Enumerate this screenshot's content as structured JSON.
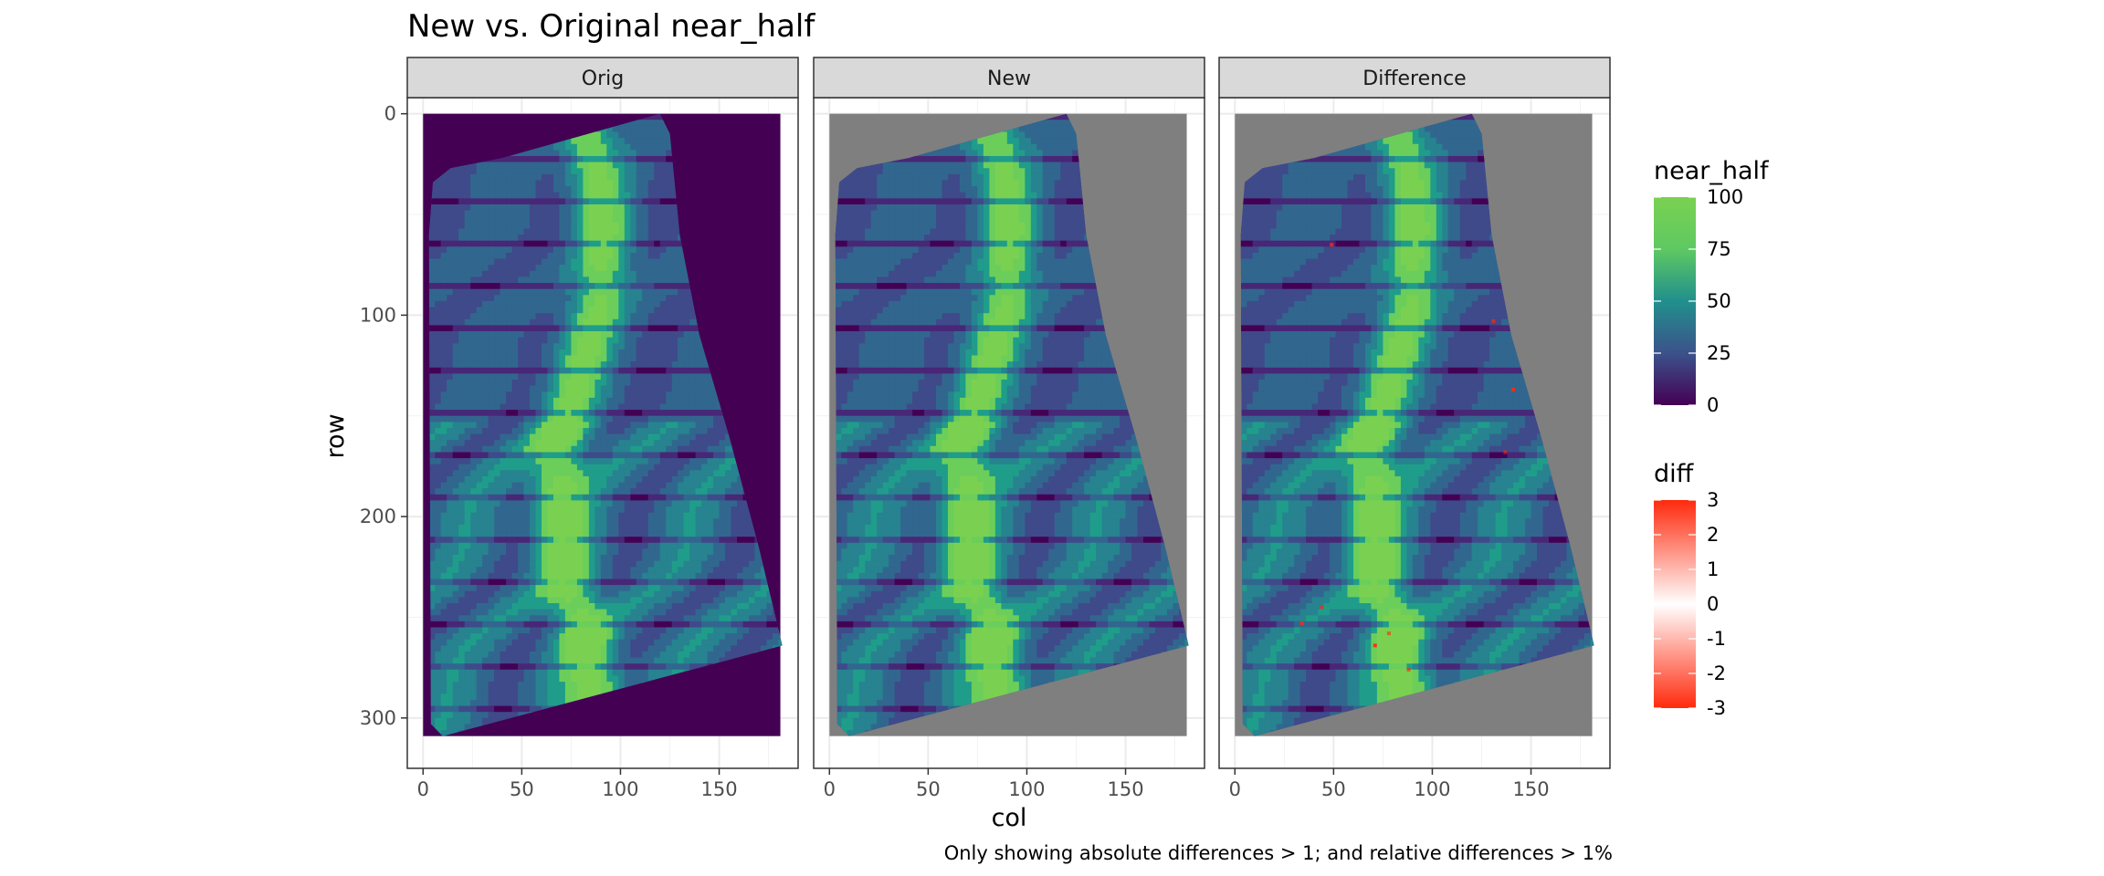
{
  "chart_data": {
    "type": "heatmap",
    "title": "New vs. Original near_half",
    "xlabel": "col",
    "ylabel": "row",
    "caption": "Only showing absolute differences > 1; and relative differences > 1%",
    "xlim": [
      -8,
      190
    ],
    "ylim": [
      325,
      -8
    ],
    "x_ticks": [
      0,
      50,
      100,
      150
    ],
    "y_ticks": [
      0,
      100,
      200,
      300
    ],
    "grid": true,
    "legend_placement": "right",
    "raster_extent": {
      "x": [
        0,
        181
      ],
      "y": [
        0,
        309
      ]
    },
    "domain_polygon": [
      [
        5,
        34
      ],
      [
        14,
        27
      ],
      [
        40,
        22
      ],
      [
        120,
        0
      ],
      [
        125,
        10
      ],
      [
        130,
        60
      ],
      [
        140,
        110
      ],
      [
        155,
        160
      ],
      [
        170,
        215
      ],
      [
        182,
        264
      ],
      [
        10,
        309
      ],
      [
        4,
        303
      ],
      [
        3,
        60
      ]
    ],
    "panels": [
      {
        "label": "Orig",
        "background": "#440154"
      },
      {
        "label": "New",
        "background": "#7f7f7f"
      },
      {
        "label": "Difference",
        "background": "#7f7f7f"
      }
    ],
    "legends": [
      {
        "title": "near_half",
        "scale": "viridis",
        "limits": [
          0,
          100
        ],
        "breaks": [
          0,
          25,
          50,
          75,
          100
        ],
        "labels": [
          "0",
          "25",
          "50",
          "75",
          "100"
        ],
        "colors": [
          "#440154",
          "#3b528b",
          "#21908c",
          "#5ec962",
          "#7ad151"
        ]
      },
      {
        "title": "diff",
        "scale": "diverging",
        "limits": [
          -3,
          3
        ],
        "breaks": [
          3,
          2,
          1,
          0,
          -1,
          -2,
          -3
        ],
        "labels": [
          "3",
          "2",
          "1",
          "0",
          "-1",
          "-2",
          "-3"
        ],
        "colors": [
          "#ff2a0d",
          "#ffffff",
          "#ff2a0d"
        ]
      }
    ],
    "difference_points": [
      {
        "col": 49,
        "row": 65,
        "diff": 2.4
      },
      {
        "col": 131,
        "row": 103,
        "diff": -2.1
      },
      {
        "col": 141,
        "row": 137,
        "diff": 2.6
      },
      {
        "col": 137,
        "row": 168,
        "diff": -1.8
      },
      {
        "col": 44,
        "row": 245,
        "diff": 2.2
      },
      {
        "col": 34,
        "row": 253,
        "diff": -2.5
      },
      {
        "col": 78,
        "row": 258,
        "diff": 1.9
      },
      {
        "col": 71,
        "row": 264,
        "diff": -2.8
      },
      {
        "col": 88,
        "row": 276,
        "diff": 2.0
      }
    ]
  }
}
